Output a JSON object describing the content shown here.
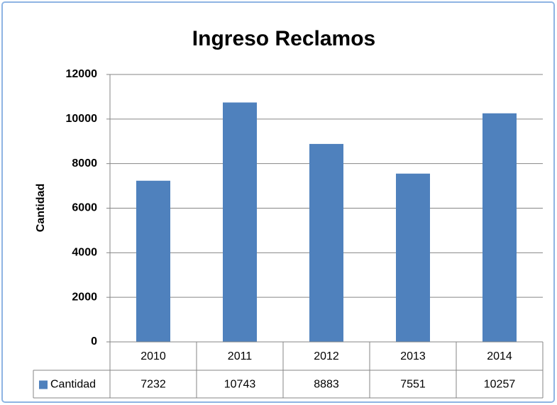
{
  "chart_data": {
    "type": "bar",
    "title": "Ingreso Reclamos",
    "y_label": "Cantidad",
    "categories": [
      "2010",
      "2011",
      "2012",
      "2013",
      "2014"
    ],
    "series": [
      {
        "name": "Cantidad",
        "color": "#4f81bd",
        "values": [
          7232,
          10743,
          8883,
          7551,
          10257
        ]
      }
    ],
    "ylim": [
      0,
      12000
    ],
    "yticks": [
      0,
      2000,
      4000,
      6000,
      8000,
      10000,
      12000
    ],
    "grid": true,
    "data_table": true
  }
}
